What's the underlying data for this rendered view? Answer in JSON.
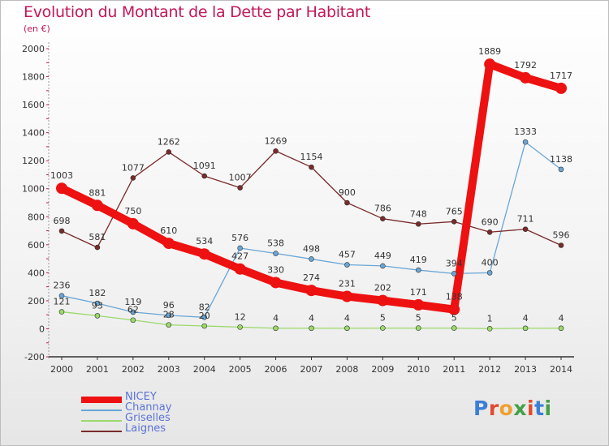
{
  "header": {
    "title": "Evolution du Montant de la Dette par Habitant",
    "subtitle": "(en €)"
  },
  "logo": {
    "text": "Proxiti",
    "colors": [
      "#3b7fd6",
      "#e24a2d",
      "#f0a030",
      "#43a047",
      "#e24a2d",
      "#3b7fd6",
      "#43a047"
    ]
  },
  "chart_data": {
    "type": "line",
    "x": [
      "2000",
      "2001",
      "2002",
      "2003",
      "2004",
      "2005",
      "2006",
      "2007",
      "2008",
      "2009",
      "2010",
      "2011",
      "2012",
      "2013",
      "2014"
    ],
    "ylim": [
      -200,
      2000
    ],
    "yticks": [
      "-200",
      "0",
      "200",
      "400",
      "600",
      "800",
      "1000",
      "1200",
      "1400",
      "1600",
      "1800",
      "2000"
    ],
    "grid": false,
    "legend_position": "bottom-left",
    "series": [
      {
        "name": "NICEY",
        "color": "#ee1111",
        "values": [
          1003,
          881,
          750,
          610,
          534,
          427,
          330,
          274,
          231,
          202,
          171,
          138,
          1889,
          1792,
          1717
        ],
        "labels": [
          "1003",
          "881",
          "750",
          "610",
          "534",
          "427",
          "330",
          "274",
          "231",
          "202",
          "171",
          "138",
          "1889",
          "1792",
          "1717"
        ]
      },
      {
        "name": "Channay",
        "color": "#6aa6d6",
        "values": [
          236,
          182,
          119,
          96,
          82,
          576,
          538,
          498,
          457,
          449,
          419,
          394,
          400,
          1333,
          1138
        ],
        "labels": [
          "236",
          "182",
          "119",
          "96",
          "82",
          "576",
          "538",
          "498",
          "457",
          "449",
          "419",
          "394",
          "400",
          "1333",
          "1138"
        ]
      },
      {
        "name": "Griselles",
        "color": "#9ad96a",
        "values": [
          121,
          93,
          62,
          28,
          20,
          12,
          4,
          4,
          4,
          5,
          5,
          5,
          1,
          4,
          4
        ],
        "labels": [
          "121",
          "93",
          "62",
          "28",
          "20",
          "12",
          "4",
          "4",
          "4",
          "5",
          "5",
          "5",
          "1",
          "4",
          "4"
        ]
      },
      {
        "name": "Laignes",
        "color": "#7a2a2a",
        "values": [
          698,
          581,
          1077,
          1262,
          1091,
          1007,
          1269,
          1154,
          900,
          786,
          748,
          765,
          690,
          711,
          596
        ],
        "labels": [
          "698",
          "581",
          "1077",
          "1262",
          "1091",
          "1007",
          "1269",
          "1154",
          "900",
          "786",
          "748",
          "765",
          "690",
          "711",
          "596"
        ]
      }
    ]
  }
}
